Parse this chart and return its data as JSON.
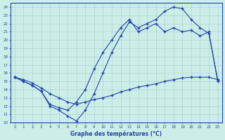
{
  "xlabel": "Graphe des températures (°C)",
  "xlim": [
    -0.5,
    23.5
  ],
  "ylim": [
    10,
    24.5
  ],
  "xticks": [
    0,
    1,
    2,
    3,
    4,
    5,
    6,
    7,
    8,
    9,
    10,
    11,
    12,
    13,
    14,
    15,
    16,
    17,
    18,
    19,
    20,
    21,
    22,
    23
  ],
  "yticks": [
    10,
    11,
    12,
    13,
    14,
    15,
    16,
    17,
    18,
    19,
    20,
    21,
    22,
    23,
    24
  ],
  "background_color": "#cceee8",
  "grid_color": "#aacccc",
  "line_color": "#2244aa",
  "line1_x": [
    0,
    1,
    2,
    3,
    4,
    5,
    6,
    7,
    8,
    9,
    10,
    11,
    12,
    13,
    14,
    15,
    16,
    17,
    18,
    19,
    20,
    21,
    22,
    23
  ],
  "line1_y": [
    15.5,
    15.0,
    14.5,
    13.8,
    12.2,
    11.8,
    11.5,
    12.5,
    14.0,
    16.5,
    18.5,
    20.0,
    21.5,
    22.5,
    21.0,
    21.5,
    22.0,
    21.0,
    21.5,
    21.0,
    21.2,
    20.5,
    21.0,
    15.0
  ],
  "line2_x": [
    0,
    1,
    2,
    3,
    4,
    5,
    6,
    7,
    8,
    9,
    10,
    11,
    12,
    13,
    14,
    15,
    16,
    17,
    18,
    19,
    20,
    21,
    22,
    23
  ],
  "line2_y": [
    15.5,
    15.0,
    14.5,
    13.8,
    12.0,
    11.5,
    10.8,
    10.2,
    11.5,
    13.5,
    16.0,
    18.5,
    20.5,
    22.2,
    21.5,
    22.0,
    22.5,
    23.5,
    24.0,
    23.8,
    22.5,
    21.5,
    20.8,
    15.2
  ],
  "line3_x": [
    0,
    1,
    2,
    3,
    4,
    5,
    6,
    7,
    8,
    9,
    10,
    11,
    12,
    13,
    14,
    15,
    16,
    17,
    18,
    19,
    20,
    21,
    22,
    23
  ],
  "line3_y": [
    15.5,
    15.2,
    14.8,
    14.2,
    13.5,
    13.0,
    12.5,
    12.2,
    12.5,
    12.8,
    13.0,
    13.3,
    13.7,
    14.0,
    14.3,
    14.5,
    14.7,
    15.0,
    15.2,
    15.4,
    15.5,
    15.5,
    15.5,
    15.2
  ]
}
